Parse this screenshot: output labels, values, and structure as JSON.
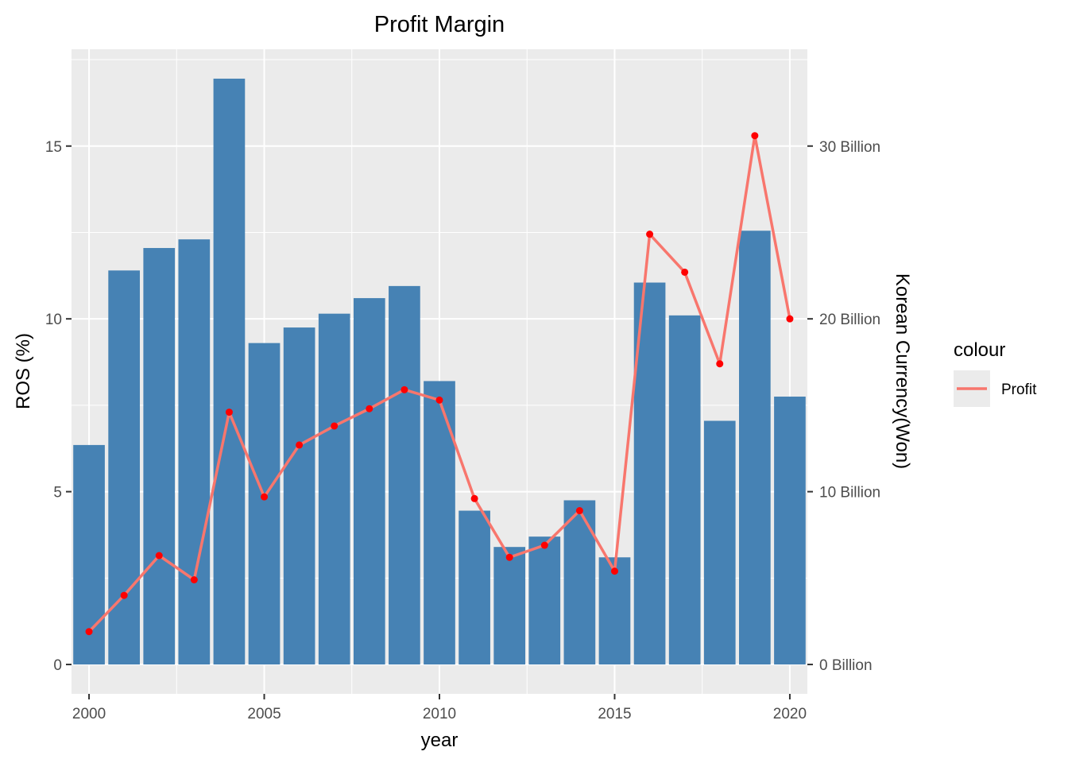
{
  "chart_data": {
    "type": "bar",
    "title": "Profit Margin",
    "xlabel": "year",
    "ylabel": "ROS (%)",
    "y2label": "Korean Currency(Won)",
    "x": [
      2000,
      2001,
      2002,
      2003,
      2004,
      2005,
      2006,
      2007,
      2008,
      2009,
      2010,
      2011,
      2012,
      2013,
      2014,
      2015,
      2016,
      2017,
      2018,
      2019,
      2020
    ],
    "series": [
      {
        "type": "bar",
        "axis": "left",
        "values": [
          6.35,
          11.4,
          12.05,
          12.3,
          16.95,
          9.3,
          9.75,
          10.15,
          10.6,
          10.95,
          8.2,
          4.45,
          3.4,
          3.7,
          4.75,
          3.1,
          11.05,
          10.1,
          7.05,
          12.55,
          7.75
        ],
        "color": "#4682b4"
      },
      {
        "type": "line",
        "name": "Profit",
        "axis": "right",
        "values": [
          1.9,
          4.0,
          6.3,
          4.9,
          14.6,
          9.7,
          12.7,
          13.8,
          14.8,
          15.9,
          15.3,
          9.6,
          6.2,
          6.9,
          8.9,
          5.4,
          24.9,
          22.7,
          17.4,
          30.6,
          20.0
        ],
        "color": "#f8766d",
        "point_color": "#ff0000"
      }
    ],
    "xlim": [
      1999.5,
      2020.5
    ],
    "ylim": [
      -0.85,
      17.8
    ],
    "y2lim": [
      -1.7,
      35.6
    ],
    "x_ticks": [
      "2000",
      "2005",
      "2010",
      "2015",
      "2020"
    ],
    "y_ticks": [
      "0",
      "5",
      "10",
      "15"
    ],
    "y2_ticks": [
      "0 Billion",
      "10 Billion",
      "20 Billion",
      "30 Billion"
    ],
    "legend_title": "colour",
    "legend_position": "right",
    "grid": true
  }
}
